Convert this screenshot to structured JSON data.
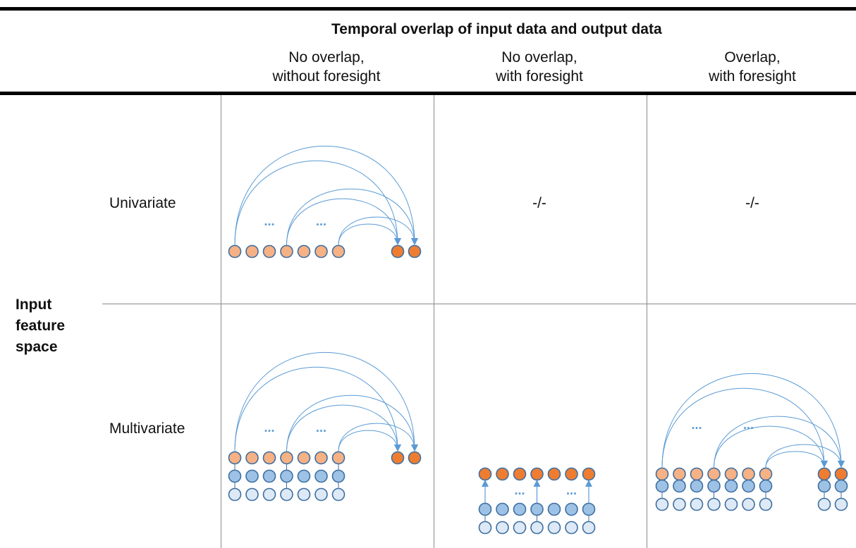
{
  "header": {
    "title": "Temporal overlap of input data and output data",
    "columns": [
      {
        "line1": "No overlap,",
        "line2": "without foresight"
      },
      {
        "line1": "No overlap,",
        "line2": "with foresight"
      },
      {
        "line1": "Overlap,",
        "line2": "with foresight"
      }
    ]
  },
  "axis_label": {
    "line1": "Input",
    "line2": "feature",
    "line3": "space"
  },
  "rows": [
    {
      "label": "Univariate"
    },
    {
      "label": "Multivariate"
    }
  ],
  "cells": {
    "univariate_no_overlap_with_foresight": "-/-",
    "univariate_overlap_with_foresight": "-/-"
  },
  "ellipsis": "...",
  "colors": {
    "output_node": "#ee7d31",
    "target_node": "#f6b184",
    "feature_node": "#9dc2e6",
    "light_node": "#dde9f6",
    "node_stroke": "#3f6fa1",
    "arrow": "#5b9bd5",
    "grid": "#8a8a8a"
  }
}
